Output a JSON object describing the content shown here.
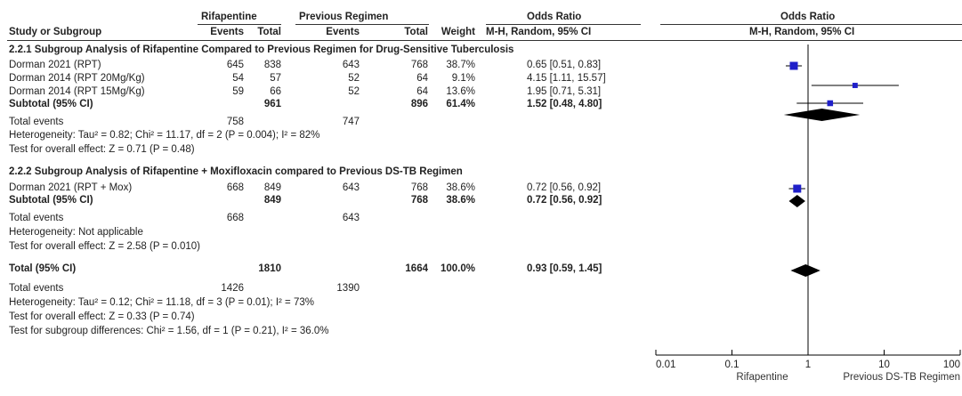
{
  "header": {
    "group1": "Rifapentine",
    "group2": "Previous Regimen",
    "effect_col": "Odds Ratio",
    "plot_title": "Odds Ratio",
    "study_col": "Study or Subgroup",
    "events1": "Events",
    "total1": "Total",
    "events2": "Events",
    "total2": "Total",
    "weight": "Weight",
    "method": "M-H, Random, 95% CI",
    "plot_method": "M-H, Random, 95% CI"
  },
  "subgroup1": {
    "title": "2.2.1 Subgroup Analysis of Rifapentine Compared to Previous Regimen  for Drug-Sensitive Tuberculosis",
    "rows": [
      {
        "study": "Dorman 2021 (RPT)",
        "e1": "645",
        "t1": "838",
        "e2": "643",
        "t2": "768",
        "w": "38.7%",
        "ci": "0.65 [0.51, 0.83]"
      },
      {
        "study": "Dorman 2014 (RPT 20Mg/Kg)",
        "e1": "54",
        "t1": "57",
        "e2": "52",
        "t2": "64",
        "w": "9.1%",
        "ci": "4.15 [1.11, 15.57]"
      },
      {
        "study": "Dorman 2014 (RPT 15Mg/Kg)",
        "e1": "59",
        "t1": "66",
        "e2": "52",
        "t2": "64",
        "w": "13.6%",
        "ci": "1.95 [0.71, 5.31]"
      }
    ],
    "subtotal": {
      "label": "Subtotal (95% CI)",
      "t1": "961",
      "t2": "896",
      "w": "61.4%",
      "ci": "1.52 [0.48, 4.80]"
    },
    "events": {
      "label": "Total events",
      "e1": "758",
      "e2": "747"
    },
    "het": "Heterogeneity: Tau² = 0.82; Chi² = 11.17, df = 2 (P = 0.004); I² = 82%",
    "test": "Test for overall effect: Z = 0.71 (P = 0.48)"
  },
  "subgroup2": {
    "title": "2.2.2 Subgroup Analysis of Rifapentine + Moxifloxacin compared to Previous DS-TB Regimen",
    "rows": [
      {
        "study": "Dorman 2021 (RPT + Mox)",
        "e1": "668",
        "t1": "849",
        "e2": "643",
        "t2": "768",
        "w": "38.6%",
        "ci": "0.72 [0.56, 0.92]"
      }
    ],
    "subtotal": {
      "label": "Subtotal (95% CI)",
      "t1": "849",
      "t2": "768",
      "w": "38.6%",
      "ci": "0.72 [0.56, 0.92]"
    },
    "events": {
      "label": "Total events",
      "e1": "668",
      "e2": "643"
    },
    "het": "Heterogeneity: Not applicable",
    "test": "Test for overall effect: Z = 2.58 (P = 0.010)"
  },
  "overall": {
    "label": "Total (95% CI)",
    "t1": "1810",
    "t2": "1664",
    "w": "100.0%",
    "ci": "0.93 [0.59, 1.45]",
    "events": {
      "label": "Total events",
      "e1": "1426",
      "e2": "1390"
    },
    "het": "Heterogeneity: Tau² = 0.12; Chi² = 11.18, df = 3 (P = 0.01); I² = 73%",
    "test": "Test for overall effect: Z = 0.33 (P = 0.74)",
    "subgroup_test": "Test for subgroup differences: Chi² = 1.56, df = 1 (P = 0.21), I² = 36.0%"
  },
  "chart_data": {
    "type": "forest",
    "scale": "log",
    "xlim": [
      0.01,
      100
    ],
    "ticks": [
      "0.01",
      "0.1",
      "1",
      "10",
      "100"
    ],
    "tick_values": [
      0.01,
      0.1,
      1,
      10,
      100
    ],
    "favours_left": "Rifapentine",
    "favours_right": "Previous DS-TB Regimen",
    "studies": [
      {
        "name": "Dorman 2021 (RPT)",
        "or": 0.65,
        "lo": 0.51,
        "hi": 0.83,
        "weight": 38.7
      },
      {
        "name": "Dorman 2014 (RPT 20Mg/Kg)",
        "or": 4.15,
        "lo": 1.11,
        "hi": 15.57,
        "weight": 9.1
      },
      {
        "name": "Dorman 2014 (RPT 15Mg/Kg)",
        "or": 1.95,
        "lo": 0.71,
        "hi": 5.31,
        "weight": 13.6
      },
      {
        "name": "Dorman 2021 (RPT + Mox)",
        "or": 0.72,
        "lo": 0.56,
        "hi": 0.92,
        "weight": 38.6
      }
    ],
    "diamonds": [
      {
        "name": "Subtotal 2.2.1",
        "or": 1.52,
        "lo": 0.48,
        "hi": 4.8
      },
      {
        "name": "Subtotal 2.2.2",
        "or": 0.72,
        "lo": 0.56,
        "hi": 0.92
      },
      {
        "name": "Total",
        "or": 0.93,
        "lo": 0.59,
        "hi": 1.45
      }
    ],
    "colors": {
      "square": "#1f1fc9",
      "diamond": "#000000",
      "line": "#000000"
    }
  }
}
